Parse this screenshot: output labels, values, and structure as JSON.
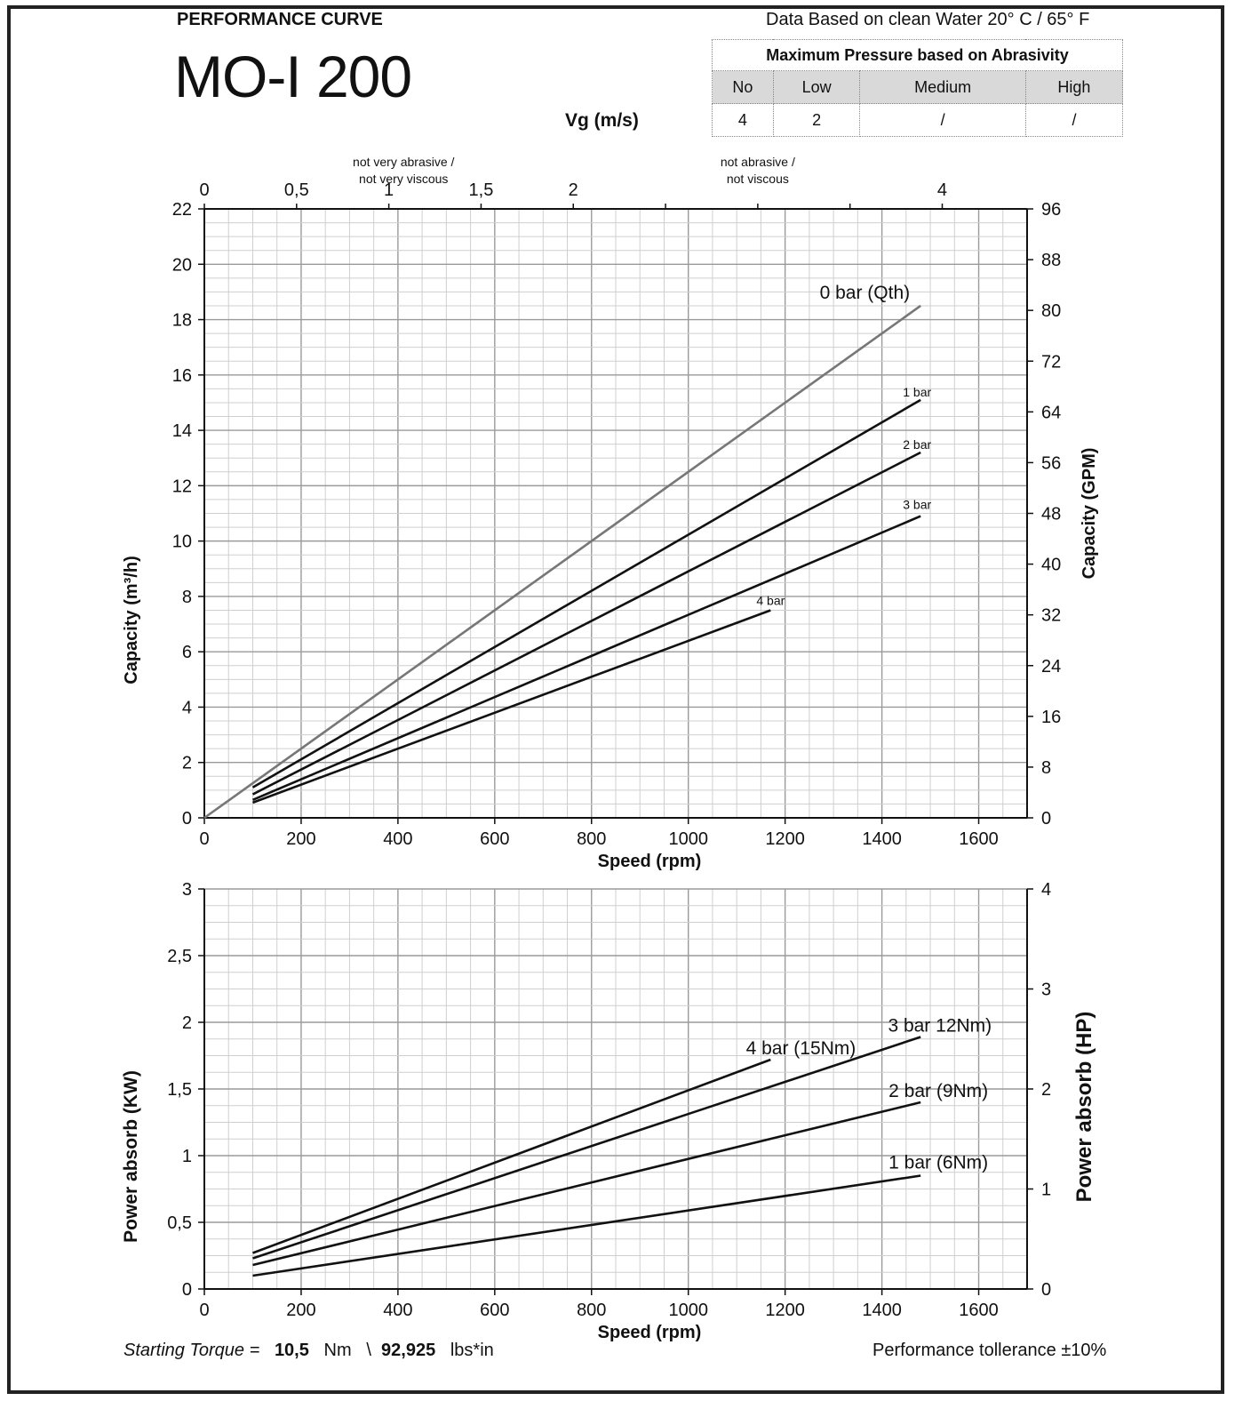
{
  "header": {
    "label": "PERFORMANCE CURVE",
    "model": "MO-I 200",
    "note": "Data Based on clean Water 20° C  /  65° F",
    "vg_label": "Vg (m/s)"
  },
  "pressure_table": {
    "title": "Maximum Pressure based on Abrasivity",
    "categories": [
      "No",
      "Low",
      "Medium",
      "High"
    ],
    "values": [
      "4",
      "2",
      "/",
      "/"
    ]
  },
  "footer": {
    "starting_torque_label": "Starting Torque =",
    "torque_nm": "10,5",
    "unit_nm": "Nm",
    "separator": "\\",
    "torque_lbs": "92,925",
    "unit_lbs": "lbs*in",
    "tolerance": "Performance tollerance ±10%"
  },
  "chart_data": [
    {
      "type": "line",
      "xlabel": "Speed (rpm)",
      "ylabel": "Capacity (m³/h)",
      "y2label": "Capacity (GPM)",
      "x_ticks": [
        "0",
        "200",
        "400",
        "600",
        "800",
        "1000",
        "1200",
        "1400",
        "1600"
      ],
      "y_ticks": [
        "0",
        "2",
        "4",
        "6",
        "8",
        "10",
        "12",
        "14",
        "16",
        "18",
        "20",
        "22"
      ],
      "y2_ticks": [
        "0",
        "8",
        "16",
        "24",
        "32",
        "40",
        "48",
        "56",
        "64",
        "72",
        "80",
        "88",
        "96"
      ],
      "top_axis": {
        "ticks": [
          "0",
          "0,5",
          "1",
          "1,5",
          "2",
          "4"
        ],
        "tick_values": [
          0,
          0.5,
          1,
          1.5,
          2,
          4
        ],
        "annotations": [
          {
            "lines": [
              "not very  abrasive /",
              "not very  viscous"
            ],
            "at_vg": 1.08
          },
          {
            "lines": [
              "not  abrasive /",
              "not  viscous"
            ],
            "at_vg": 3.0
          }
        ]
      },
      "xlim": [
        0,
        1700
      ],
      "ylim": [
        0,
        22
      ],
      "y2lim": [
        0,
        96
      ],
      "top_axis_lim": [
        0,
        4.46
      ],
      "grid": true,
      "series": [
        {
          "name": "0 bar (Qth)",
          "x": [
            0,
            1480
          ],
          "y": [
            0,
            18.5
          ],
          "color": "#777777"
        },
        {
          "name": "1 bar",
          "x": [
            100,
            1480
          ],
          "y": [
            1.1,
            15.1
          ],
          "color": "#111111"
        },
        {
          "name": "2 bar",
          "x": [
            100,
            1480
          ],
          "y": [
            0.85,
            13.2
          ],
          "color": "#111111"
        },
        {
          "name": "3 bar",
          "x": [
            100,
            1480
          ],
          "y": [
            0.65,
            10.9
          ],
          "color": "#111111"
        },
        {
          "name": "4 bar",
          "x": [
            100,
            1170
          ],
          "y": [
            0.55,
            7.5
          ],
          "color": "#111111"
        }
      ]
    },
    {
      "type": "line",
      "xlabel": "Speed (rpm)",
      "ylabel": "Power absorb (KW)",
      "y2label": "Power absorb (HP)",
      "x_ticks": [
        "0",
        "200",
        "400",
        "600",
        "800",
        "1000",
        "1200",
        "1400",
        "1600"
      ],
      "y_ticks": [
        "0",
        "0,5",
        "1",
        "1,5",
        "2",
        "2,5",
        "3"
      ],
      "y2_ticks": [
        "0",
        "1",
        "2",
        "3",
        "4"
      ],
      "xlim": [
        0,
        1700
      ],
      "ylim": [
        0,
        3
      ],
      "y2lim": [
        0,
        4
      ],
      "grid": true,
      "series": [
        {
          "name": "4 bar (15Nm)",
          "x": [
            100,
            1170
          ],
          "y": [
            0.27,
            1.72
          ],
          "color": "#111111"
        },
        {
          "name": "3 bar 12Nm)",
          "x": [
            100,
            1480
          ],
          "y": [
            0.23,
            1.89
          ],
          "color": "#111111"
        },
        {
          "name": "2 bar (9Nm)",
          "x": [
            100,
            1480
          ],
          "y": [
            0.18,
            1.4
          ],
          "color": "#111111"
        },
        {
          "name": "1 bar (6Nm)",
          "x": [
            100,
            1480
          ],
          "y": [
            0.1,
            0.85
          ],
          "color": "#111111"
        }
      ]
    }
  ]
}
